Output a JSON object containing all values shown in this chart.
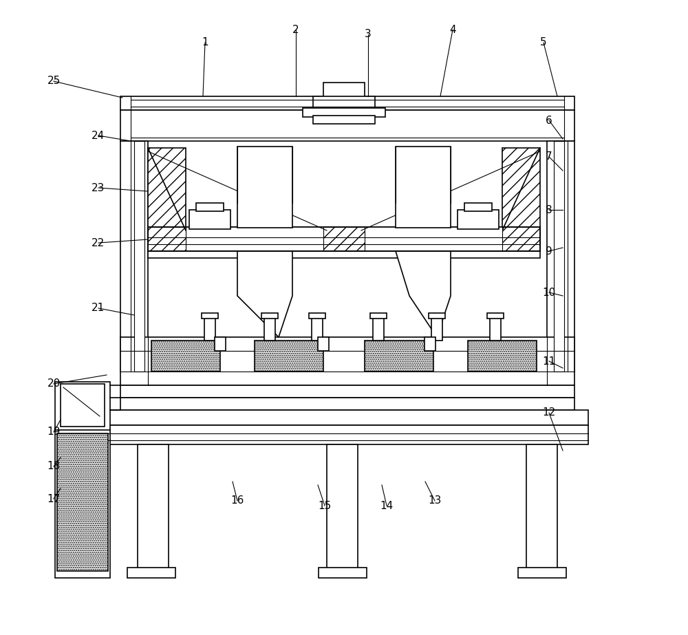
{
  "background_color": "#ffffff",
  "line_color": "#000000",
  "figure_width": 10.0,
  "figure_height": 9.23,
  "labels_img": {
    "1": [
      298,
      62,
      295,
      140
    ],
    "2": [
      430,
      43,
      430,
      140
    ],
    "3": [
      535,
      50,
      535,
      140
    ],
    "4": [
      658,
      43,
      640,
      140
    ],
    "5": [
      790,
      62,
      810,
      140
    ],
    "6": [
      798,
      175,
      818,
      202
    ],
    "7": [
      798,
      228,
      818,
      248
    ],
    "8": [
      798,
      305,
      818,
      305
    ],
    "9": [
      798,
      365,
      818,
      360
    ],
    "10": [
      798,
      425,
      818,
      430
    ],
    "11": [
      798,
      525,
      818,
      535
    ],
    "12": [
      798,
      600,
      818,
      655
    ],
    "13": [
      632,
      728,
      618,
      700
    ],
    "14": [
      562,
      735,
      555,
      705
    ],
    "15": [
      472,
      735,
      462,
      705
    ],
    "16": [
      345,
      728,
      338,
      700
    ],
    "17": [
      78,
      725,
      88,
      710
    ],
    "18": [
      78,
      678,
      88,
      665
    ],
    "19": [
      78,
      628,
      88,
      610
    ],
    "20": [
      78,
      558,
      155,
      545
    ],
    "21": [
      143,
      448,
      195,
      458
    ],
    "22": [
      143,
      353,
      215,
      348
    ],
    "23": [
      143,
      273,
      215,
      278
    ],
    "24": [
      143,
      197,
      190,
      205
    ],
    "25": [
      78,
      118,
      178,
      142
    ]
  }
}
